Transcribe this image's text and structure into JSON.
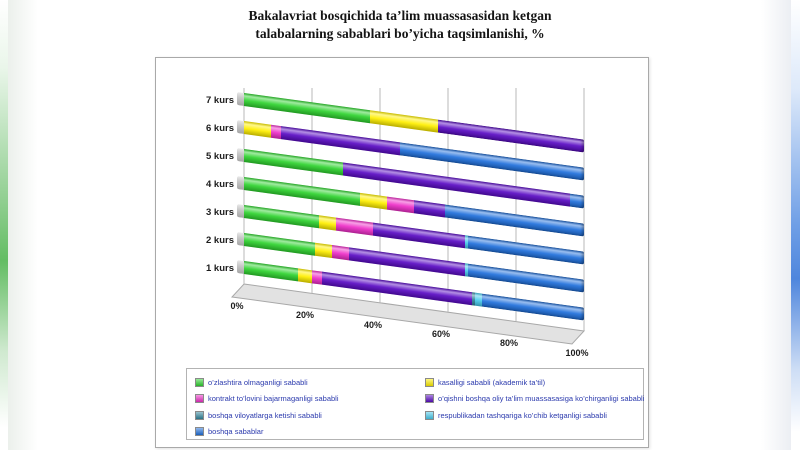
{
  "header": {
    "line1": "Bakalavriat bosqichida ta’lim muassasasidan ketgan",
    "line2": "talabalarning sabablari bo’yicha taqsimlanishi, %"
  },
  "chart_data": {
    "type": "bar",
    "stacked": true,
    "orientation": "horizontal",
    "title": "Bakalavriat bosqichida ta’lim muassasasidan ketgan talabalarning sabablari bo’yicha taqsimlanishi, %",
    "categories": [
      "7 kurs",
      "6 kurs",
      "5 kurs",
      "4 kurs",
      "3 kurs",
      "2 kurs",
      "1 kurs"
    ],
    "series": [
      {
        "name": "o’zlashtira olmaganligi sababli",
        "color": "#2fd32f",
        "values": [
          37,
          0,
          29,
          34,
          22,
          21,
          16
        ]
      },
      {
        "name": "kasalligi sababli (akademik ta’til)",
        "color": "#ffef00",
        "values": [
          20,
          8,
          0,
          8,
          5,
          5,
          4
        ]
      },
      {
        "name": "kontrakt to’lovini bajarmaganligi sababli",
        "color": "#ee2fc8",
        "values": [
          0,
          3,
          0,
          8,
          11,
          5,
          3
        ]
      },
      {
        "name": "o’qishni boshqa oliy ta’lim muassasasiga ko’chirganligi sababli",
        "color": "#5a0bc4",
        "values": [
          43,
          35,
          67,
          9,
          27,
          34,
          44
        ]
      },
      {
        "name": "boshqa viloyatlarga ketishi sababli",
        "color": "#31859c",
        "values": [
          0,
          0,
          0,
          0,
          0,
          0,
          1
        ]
      },
      {
        "name": "respublikadan tashqariga ko’chib ketganligi sababli",
        "color": "#49cbed",
        "values": [
          0,
          0,
          0,
          0,
          1,
          1,
          2
        ]
      },
      {
        "name": "boshqa sabablar",
        "color": "#2070dc",
        "values": [
          0,
          54,
          4,
          41,
          34,
          34,
          30
        ]
      }
    ],
    "x_ticks": [
      "0%",
      "20%",
      "40%",
      "60%",
      "80%",
      "100%"
    ],
    "xlim": [
      0,
      100
    ],
    "grid": true,
    "legend_position": "bottom",
    "legend_columns": {
      "left": [
        0,
        2,
        4,
        6
      ],
      "right": [
        1,
        3,
        5
      ]
    }
  }
}
